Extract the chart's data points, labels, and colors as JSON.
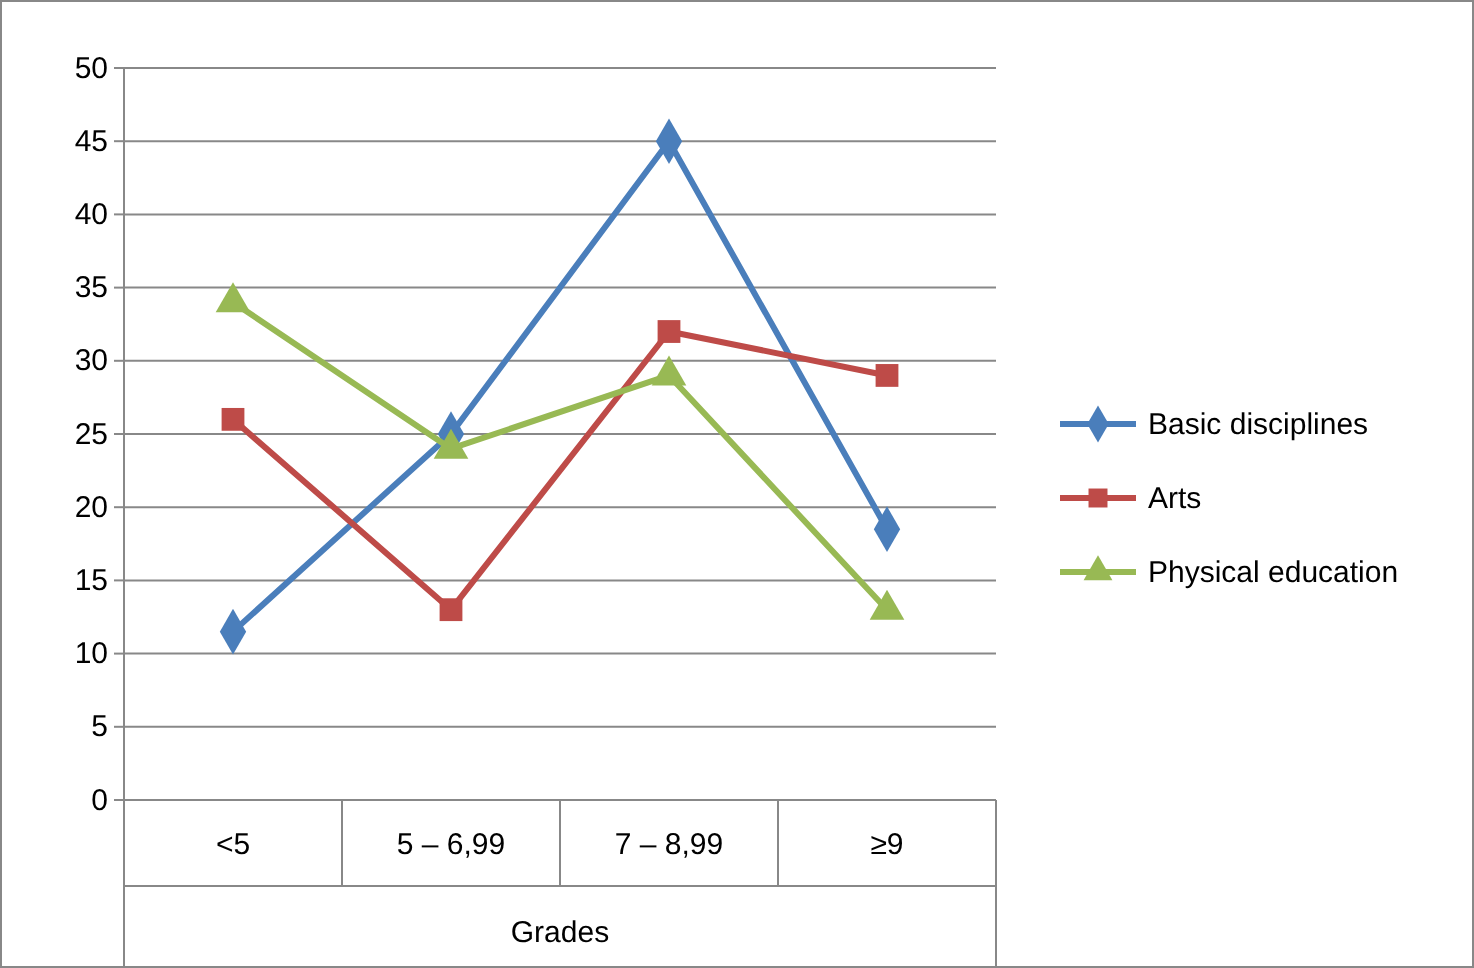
{
  "chart_data": {
    "type": "line",
    "xlabel": "Grades",
    "categories": [
      "<5",
      "5 – 6,99",
      "7 – 8,99",
      "≥9"
    ],
    "ylim": [
      0,
      50
    ],
    "yticks": [
      0,
      5,
      10,
      15,
      20,
      25,
      30,
      35,
      40,
      45,
      50
    ],
    "grid": "y",
    "legend": "right",
    "line_style": "solid",
    "series": [
      {
        "name": "Basic disciplines",
        "color": "#4a7ebb",
        "marker": "diamond",
        "values": [
          11.5,
          25,
          45,
          18.5
        ]
      },
      {
        "name": "Arts",
        "color": "#be4b48",
        "marker": "square",
        "values": [
          26,
          13,
          32,
          29
        ]
      },
      {
        "name": "Physical education",
        "color": "#98b954",
        "marker": "triangle",
        "values": [
          34,
          24,
          29,
          13
        ]
      }
    ]
  }
}
